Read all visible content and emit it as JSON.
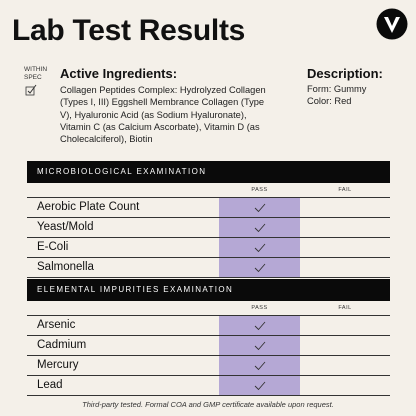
{
  "header": {
    "title": "Lab Test Results",
    "within_spec": [
      "WITHIN",
      "SPEC"
    ]
  },
  "active_ingredients": {
    "heading": "Active Ingredients:",
    "lines": [
      "Collagen Peptides Complex: Hydrolyzed Collagen",
      "(Types I, III) Eggshell Membrance Collagen (Type",
      "V), Hyaluronic Acid (as Sodium Hyaluronate),",
      "Vitamin C (as Calcium Ascorbate), Vitamin D (as",
      "Cholecalciferol), Biotin"
    ]
  },
  "description": {
    "heading": "Description:",
    "lines": [
      "Form: Gummy",
      "Color: Red"
    ]
  },
  "table": {
    "sections": [
      {
        "title": "MICROBIOLOGICAL EXAMINATION",
        "columns": [
          "PASS",
          "FAIL"
        ],
        "rows": [
          "Aerobic Plate Count",
          "Yeast/Mold",
          "E-Coli",
          "Salmonella"
        ]
      },
      {
        "title": "ELEMENTAL IMPURITIES EXAMINATION",
        "columns": [
          "PASS",
          "FAIL"
        ],
        "rows": [
          "Arsenic",
          "Cadmium",
          "Mercury",
          "Lead"
        ]
      }
    ]
  },
  "footer": "Third-party tested. Formal COA and GMP certificate available upon request."
}
